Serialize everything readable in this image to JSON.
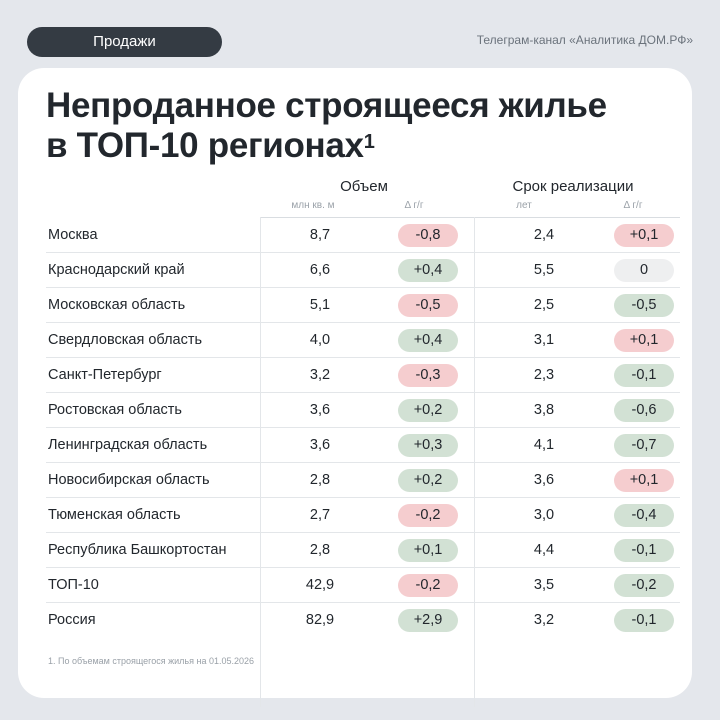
{
  "header": {
    "tag": "Продажи",
    "channel": "Телеграм-канал «Аналитика ДОМ.РФ»"
  },
  "title": {
    "line1": "Непроданное строящееся жилье",
    "line2": "в ТОП-10 регионах",
    "sup": "1"
  },
  "table": {
    "group_volume": "Объем",
    "group_term": "Срок реализации",
    "unit_volume": "млн кв. м",
    "unit_yoy_volume": "Δ г/г",
    "unit_term": "лет",
    "unit_yoy_term": "Δ г/г",
    "rows": [
      {
        "region": "Москва",
        "volume": "8,7",
        "volume_delta": "-0,8",
        "volume_sign": "neg",
        "term": "2,4",
        "term_delta": "+0,1",
        "term_sign": "neg"
      },
      {
        "region": "Краснодарский край",
        "volume": "6,6",
        "volume_delta": "+0,4",
        "volume_sign": "pos",
        "term": "5,5",
        "term_delta": "0",
        "term_sign": "zero"
      },
      {
        "region": "Московская область",
        "volume": "5,1",
        "volume_delta": "-0,5",
        "volume_sign": "neg",
        "term": "2,5",
        "term_delta": "-0,5",
        "term_sign": "pos"
      },
      {
        "region": "Свердловская область",
        "volume": "4,0",
        "volume_delta": "+0,4",
        "volume_sign": "pos",
        "term": "3,1",
        "term_delta": "+0,1",
        "term_sign": "neg"
      },
      {
        "region": "Санкт-Петербург",
        "volume": "3,2",
        "volume_delta": "-0,3",
        "volume_sign": "neg",
        "term": "2,3",
        "term_delta": "-0,1",
        "term_sign": "pos"
      },
      {
        "region": "Ростовская область",
        "volume": "3,6",
        "volume_delta": "+0,2",
        "volume_sign": "pos",
        "term": "3,8",
        "term_delta": "-0,6",
        "term_sign": "pos"
      },
      {
        "region": "Ленинградская область",
        "volume": "3,6",
        "volume_delta": "+0,3",
        "volume_sign": "pos",
        "term": "4,1",
        "term_delta": "-0,7",
        "term_sign": "pos"
      },
      {
        "region": "Новосибирская область",
        "volume": "2,8",
        "volume_delta": "+0,2",
        "volume_sign": "pos",
        "term": "3,6",
        "term_delta": "+0,1",
        "term_sign": "neg"
      },
      {
        "region": "Тюменская область",
        "volume": "2,7",
        "volume_delta": "-0,2",
        "volume_sign": "neg",
        "term": "3,0",
        "term_delta": "-0,4",
        "term_sign": "pos"
      },
      {
        "region": "Республика Башкортостан",
        "volume": "2,8",
        "volume_delta": "+0,1",
        "volume_sign": "pos",
        "term": "4,4",
        "term_delta": "-0,1",
        "term_sign": "pos"
      },
      {
        "region": "ТОП-10",
        "volume": "42,9",
        "volume_delta": "-0,2",
        "volume_sign": "neg",
        "term": "3,5",
        "term_delta": "-0,2",
        "term_sign": "pos"
      },
      {
        "region": "Россия",
        "volume": "82,9",
        "volume_delta": "+2,9",
        "volume_sign": "pos",
        "term": "3,2",
        "term_delta": "-0,1",
        "term_sign": "pos"
      }
    ]
  },
  "footnote": "1. По объемам строящегося жилья на 01.05.2026",
  "colors": {
    "background": "#e4e7ec",
    "tag_bg": "#343b43",
    "negative_pill": "#f5cdcf",
    "positive_pill": "#d2e1d4",
    "neutral_pill": "#eeeff0"
  }
}
